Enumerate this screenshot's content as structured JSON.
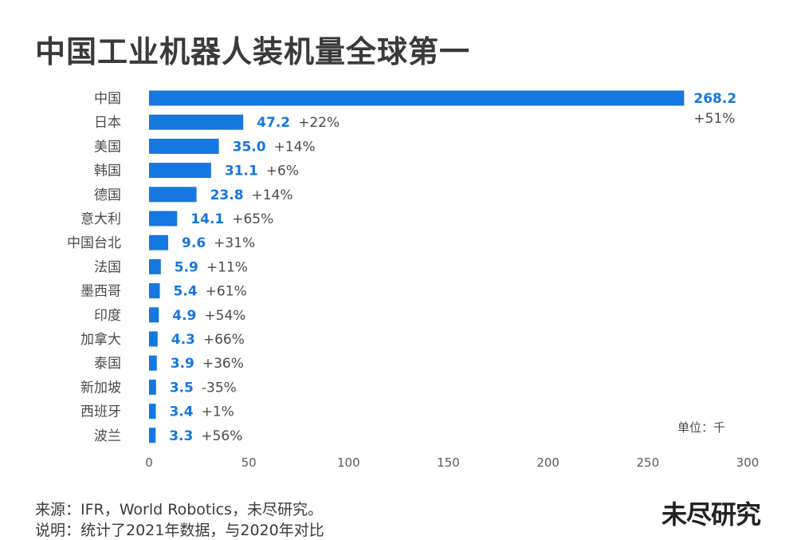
{
  "title": "中国工业机器人装机量全球第一",
  "unit_label": "单位：千",
  "source": "来源：IFR，World Robotics，未尽研究。",
  "note": "说明：统计了2021年数据，与2020年对比",
  "logo": "未尽研究",
  "colors": {
    "bar": "#1577e0",
    "value_text": "#1577e0"
  },
  "chart_data": {
    "type": "bar",
    "orientation": "horizontal",
    "title": "中国工业机器人装机量全球第一",
    "xlabel": "",
    "ylabel": "",
    "xlim": [
      0,
      300
    ],
    "xticks": [
      "0",
      "50",
      "100",
      "150",
      "200",
      "250",
      "300"
    ],
    "categories": [
      "中国",
      "日本",
      "美国",
      "韩国",
      "德国",
      "意大利",
      "中国台北",
      "法国",
      "墨西哥",
      "印度",
      "加拿大",
      "泰国",
      "新加坡",
      "西班牙",
      "波兰"
    ],
    "values": [
      268.2,
      47.2,
      35.0,
      31.1,
      23.8,
      14.1,
      9.6,
      5.9,
      5.4,
      4.9,
      4.3,
      3.9,
      3.5,
      3.4,
      3.3
    ],
    "value_labels": [
      "268.2",
      "47.2",
      "35.0",
      "31.1",
      "23.8",
      "14.1",
      "9.6",
      "5.9",
      "5.4",
      "4.9",
      "4.3",
      "3.9",
      "3.5",
      "3.4",
      "3.3"
    ],
    "change_labels": [
      "+51%",
      "+22%",
      "+14%",
      "+6%",
      "+14%",
      "+65%",
      "+31%",
      "+11%",
      "+61%",
      "+54%",
      "+66%",
      "+36%",
      "-35%",
      "+1%",
      "+56%"
    ],
    "grid": false,
    "legend": "none"
  }
}
